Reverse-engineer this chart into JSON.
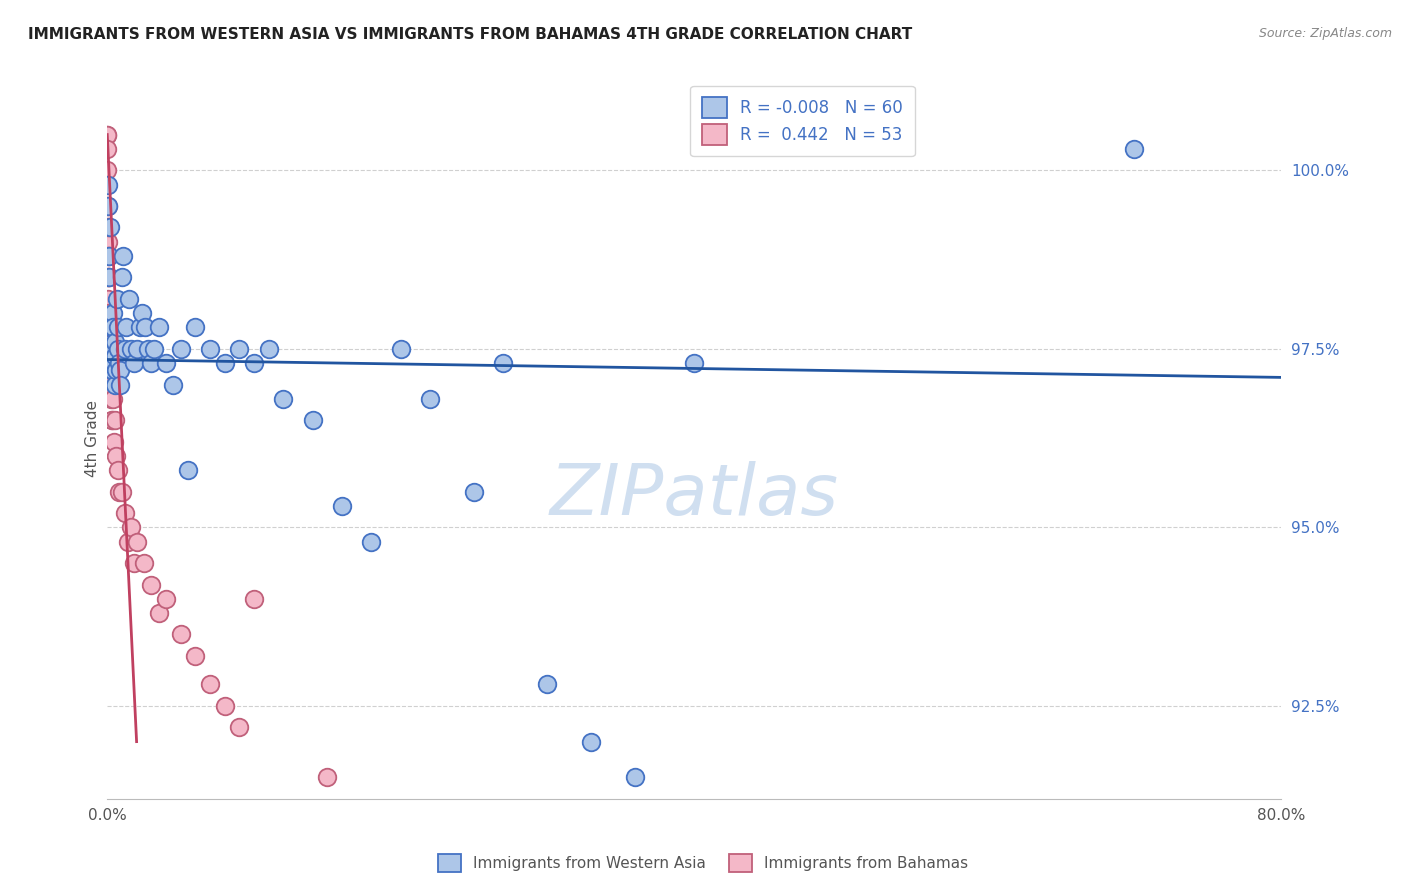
{
  "title": "IMMIGRANTS FROM WESTERN ASIA VS IMMIGRANTS FROM BAHAMAS 4TH GRADE CORRELATION CHART",
  "source": "Source: ZipAtlas.com",
  "ylabel": "4th Grade",
  "xlim": [
    0.0,
    80.0
  ],
  "ylim": [
    91.2,
    101.3
  ],
  "ytick_positions": [
    92.5,
    95.0,
    97.5,
    100.0
  ],
  "ytick_labels": [
    "92.5%",
    "95.0%",
    "97.5%",
    "100.0%"
  ],
  "xtick_positions": [
    0,
    10,
    20,
    30,
    40,
    50,
    60,
    70,
    80
  ],
  "xtick_labels": [
    "0.0%",
    "",
    "",
    "",
    "",
    "",
    "",
    "",
    "80.0%"
  ],
  "legend_blue_label": "R = -0.008   N = 60",
  "legend_pink_label": "R =  0.442   N = 53",
  "blue_color": "#adc6e8",
  "blue_border": "#4472c4",
  "pink_color": "#f4b8c8",
  "pink_border": "#c0607a",
  "trend_blue_color": "#2155a0",
  "trend_pink_color": "#c04060",
  "watermark": "ZIPatlas",
  "watermark_color": "#d0dff0",
  "blue_label": "Immigrants from Western Asia",
  "pink_label": "Immigrants from Bahamas",
  "blue_R": -0.008,
  "blue_N": 60,
  "pink_R": 0.442,
  "pink_N": 53,
  "blue_scatter_x": [
    0.05,
    0.08,
    0.1,
    0.15,
    0.18,
    0.2,
    0.25,
    0.3,
    0.35,
    0.4,
    0.42,
    0.45,
    0.5,
    0.52,
    0.55,
    0.6,
    0.65,
    0.7,
    0.75,
    0.8,
    0.85,
    0.9,
    1.0,
    1.1,
    1.2,
    1.3,
    1.5,
    1.6,
    1.8,
    2.0,
    2.2,
    2.4,
    2.6,
    2.8,
    3.0,
    3.2,
    3.5,
    4.0,
    4.5,
    5.0,
    5.5,
    6.0,
    7.0,
    8.0,
    9.0,
    10.0,
    11.0,
    12.0,
    14.0,
    16.0,
    18.0,
    20.0,
    22.0,
    25.0,
    27.0,
    30.0,
    33.0,
    36.0,
    40.0,
    70.0
  ],
  "blue_scatter_y": [
    99.8,
    99.5,
    98.8,
    98.5,
    99.2,
    97.8,
    97.5,
    97.2,
    97.5,
    98.0,
    97.8,
    97.3,
    97.0,
    97.6,
    97.4,
    97.2,
    98.2,
    97.5,
    97.8,
    97.3,
    97.2,
    97.0,
    98.5,
    98.8,
    97.5,
    97.8,
    98.2,
    97.5,
    97.3,
    97.5,
    97.8,
    98.0,
    97.8,
    97.5,
    97.3,
    97.5,
    97.8,
    97.3,
    97.0,
    97.5,
    95.8,
    97.8,
    97.5,
    97.3,
    97.5,
    97.3,
    97.5,
    96.8,
    96.5,
    95.3,
    94.8,
    97.5,
    96.8,
    95.5,
    97.3,
    92.8,
    92.0,
    91.5,
    97.3,
    100.3
  ],
  "pink_scatter_x": [
    0.0,
    0.0,
    0.0,
    0.0,
    0.0,
    0.0,
    0.0,
    0.02,
    0.02,
    0.03,
    0.05,
    0.05,
    0.07,
    0.08,
    0.08,
    0.1,
    0.12,
    0.12,
    0.13,
    0.15,
    0.15,
    0.18,
    0.18,
    0.2,
    0.22,
    0.25,
    0.27,
    0.3,
    0.32,
    0.35,
    0.4,
    0.45,
    0.5,
    0.6,
    0.7,
    0.8,
    1.0,
    1.2,
    1.4,
    1.6,
    1.8,
    2.0,
    2.5,
    3.0,
    3.5,
    4.0,
    5.0,
    6.0,
    7.0,
    8.0,
    9.0,
    10.0,
    15.0
  ],
  "pink_scatter_y": [
    100.5,
    100.5,
    100.3,
    100.0,
    99.8,
    99.5,
    99.2,
    99.5,
    99.0,
    98.8,
    99.2,
    98.5,
    98.5,
    98.2,
    97.8,
    99.2,
    98.5,
    98.0,
    97.5,
    98.8,
    97.5,
    97.8,
    97.3,
    97.5,
    97.2,
    97.2,
    96.8,
    97.0,
    96.5,
    96.5,
    96.8,
    96.2,
    96.5,
    96.0,
    95.8,
    95.5,
    95.5,
    95.2,
    94.8,
    95.0,
    94.5,
    94.8,
    94.5,
    94.2,
    93.8,
    94.0,
    93.5,
    93.2,
    92.8,
    92.5,
    92.2,
    94.0,
    91.5
  ],
  "blue_trend_x": [
    0.0,
    80.0
  ],
  "blue_trend_y": [
    97.35,
    97.1
  ],
  "pink_trend_x": [
    0.0,
    2.0
  ],
  "pink_trend_y": [
    100.5,
    92.0
  ]
}
